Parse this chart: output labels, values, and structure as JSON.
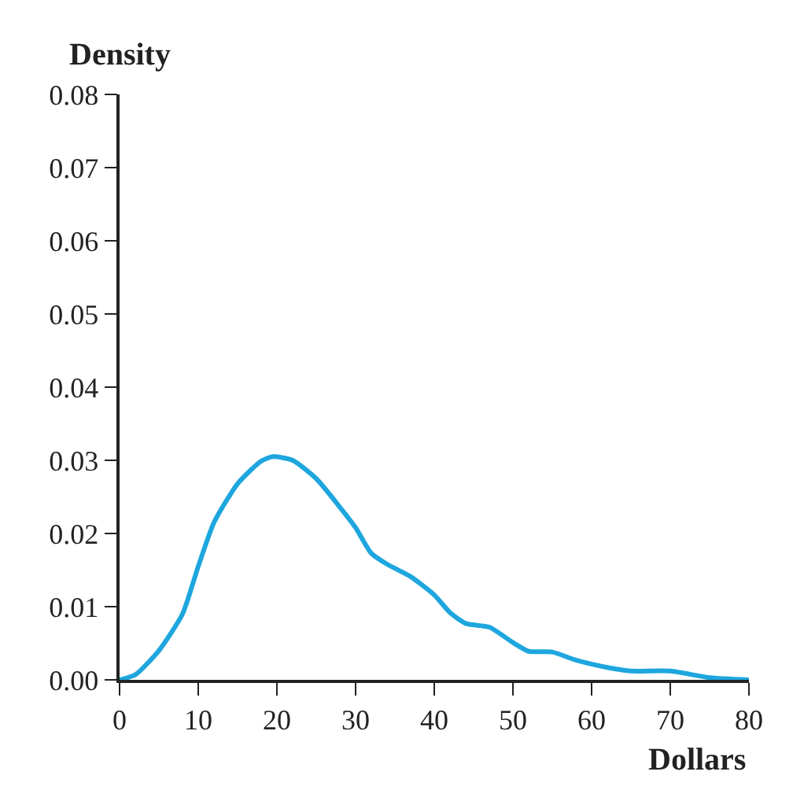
{
  "chart_data": {
    "type": "line",
    "ylabel": "Density",
    "xlabel": "Dollars",
    "series": [
      {
        "color": "#1ea6de",
        "x": [
          0,
          2,
          5,
          8,
          10,
          12,
          15,
          18,
          19.5,
          22,
          25,
          28,
          30,
          32,
          34,
          37,
          40,
          42,
          44,
          47,
          50,
          52,
          55,
          58,
          62,
          65,
          70,
          75,
          80
        ],
        "values": [
          0,
          0.0007,
          0.004,
          0.009,
          0.0155,
          0.0215,
          0.0268,
          0.0299,
          0.0305,
          0.03,
          0.0275,
          0.0236,
          0.0208,
          0.0173,
          0.0158,
          0.0141,
          0.0116,
          0.0092,
          0.0077,
          0.0072,
          0.0051,
          0.0039,
          0.0038,
          0.0027,
          0.0017,
          0.0012,
          0.0012,
          0.0003,
          0
        ]
      }
    ],
    "xlim": [
      0,
      80
    ],
    "xticks": [
      0,
      10,
      20,
      30,
      40,
      50,
      60,
      70,
      80
    ],
    "ylim": [
      0,
      0.08
    ],
    "yticks": [
      {
        "value": 0,
        "label": "0.00"
      },
      {
        "value": 0.01,
        "label": "0.01"
      },
      {
        "value": 0.02,
        "label": "0.02"
      },
      {
        "value": 0.03,
        "label": "0.03"
      },
      {
        "value": 0.04,
        "label": "0.04"
      },
      {
        "value": 0.05,
        "label": "0.05"
      },
      {
        "value": 0.06,
        "label": "0.06"
      },
      {
        "value": 0.07,
        "label": "0.07"
      },
      {
        "value": 0.08,
        "label": "0.08"
      }
    ],
    "marker": "none",
    "line_style": "solid"
  }
}
